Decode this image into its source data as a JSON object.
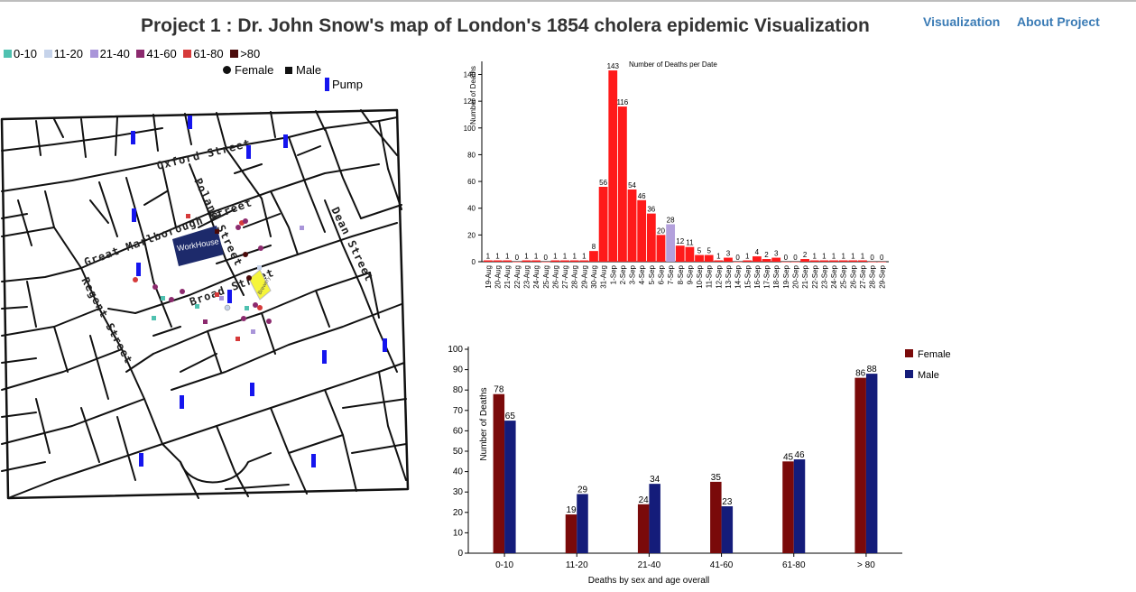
{
  "header": {
    "title": "Project 1 : Dr. John Snow's map of London's 1854 cholera epidemic Visualization",
    "nav": [
      {
        "label": "Visualization"
      },
      {
        "label": "About Project"
      }
    ]
  },
  "map_legend": {
    "age_groups": [
      {
        "label": "0-10",
        "color": "#4fc1b0"
      },
      {
        "label": "11-20",
        "color": "#c6d3ea"
      },
      {
        "label": "21-40",
        "color": "#a995d9"
      },
      {
        "label": "41-60",
        "color": "#8c2a6e"
      },
      {
        "label": "61-80",
        "color": "#d63a3a"
      },
      {
        "label": ">80",
        "color": "#4a0a0a"
      }
    ],
    "female_label": "Female",
    "male_label": "Male",
    "pump_label": "Pump",
    "pump_color": "#1515ee"
  },
  "map": {
    "streets": [
      "Oxford Street",
      "Poland Street",
      "Great Marlborough Street",
      "Regent Street",
      "Dean Street",
      "Broad Street"
    ],
    "workhouse_label": "WorkHouse",
    "brewery_label": "Brewery"
  },
  "chart_data": [
    {
      "type": "bar",
      "title": "Number of Deaths per Date",
      "ylabel": "Number of Deaths",
      "xlabel": "",
      "ylim": [
        0,
        140
      ],
      "yticks": [
        0,
        20,
        40,
        60,
        80,
        100,
        120,
        140
      ],
      "categories": [
        "19-Aug",
        "20-Aug",
        "21-Aug",
        "22-Aug",
        "23-Aug",
        "24-Aug",
        "25-Aug",
        "26-Aug",
        "27-Aug",
        "28-Aug",
        "29-Aug",
        "30-Aug",
        "31-Aug",
        "1-Sep",
        "2-Sep",
        "3-Sep",
        "4-Sep",
        "5-Sep",
        "6-Sep",
        "7-Sep",
        "8-Sep",
        "9-Sep",
        "10-Sep",
        "11-Sep",
        "12-Sep",
        "13-Sep",
        "14-Sep",
        "15-Sep",
        "16-Sep",
        "17-Sep",
        "18-Sep",
        "19-Sep",
        "20-Sep",
        "21-Sep",
        "22-Sep",
        "23-Sep",
        "24-Sep",
        "25-Sep",
        "26-Sep",
        "27-Sep",
        "28-Sep",
        "29-Sep"
      ],
      "values": [
        1,
        1,
        1,
        0,
        1,
        1,
        0,
        1,
        1,
        1,
        1,
        8,
        56,
        143,
        116,
        54,
        46,
        36,
        20,
        28,
        12,
        11,
        5,
        5,
        1,
        3,
        0,
        1,
        4,
        2,
        3,
        0,
        0,
        2,
        1,
        1,
        1,
        1,
        1,
        1,
        0,
        0
      ],
      "bar_color": "#ff1a1a",
      "highlight": {
        "category": "7-Sep",
        "color": "#b3a0dc"
      }
    },
    {
      "type": "bar",
      "title": "",
      "ylabel": "Number of Deaths",
      "xlabel": "Deaths by sex and age overall",
      "ylim": [
        0,
        100
      ],
      "yticks": [
        0,
        10,
        20,
        30,
        40,
        50,
        60,
        70,
        80,
        90,
        100
      ],
      "categories": [
        "0-10",
        "11-20",
        "21-40",
        "41-60",
        "61-80",
        "> 80"
      ],
      "series": [
        {
          "name": "Female",
          "color": "#7a0a0a",
          "values": [
            78,
            19,
            24,
            35,
            45,
            86
          ]
        },
        {
          "name": "Male",
          "color": "#141c7a",
          "values": [
            65,
            29,
            34,
            23,
            46,
            88
          ]
        }
      ],
      "legend_position": "top-right"
    }
  ]
}
